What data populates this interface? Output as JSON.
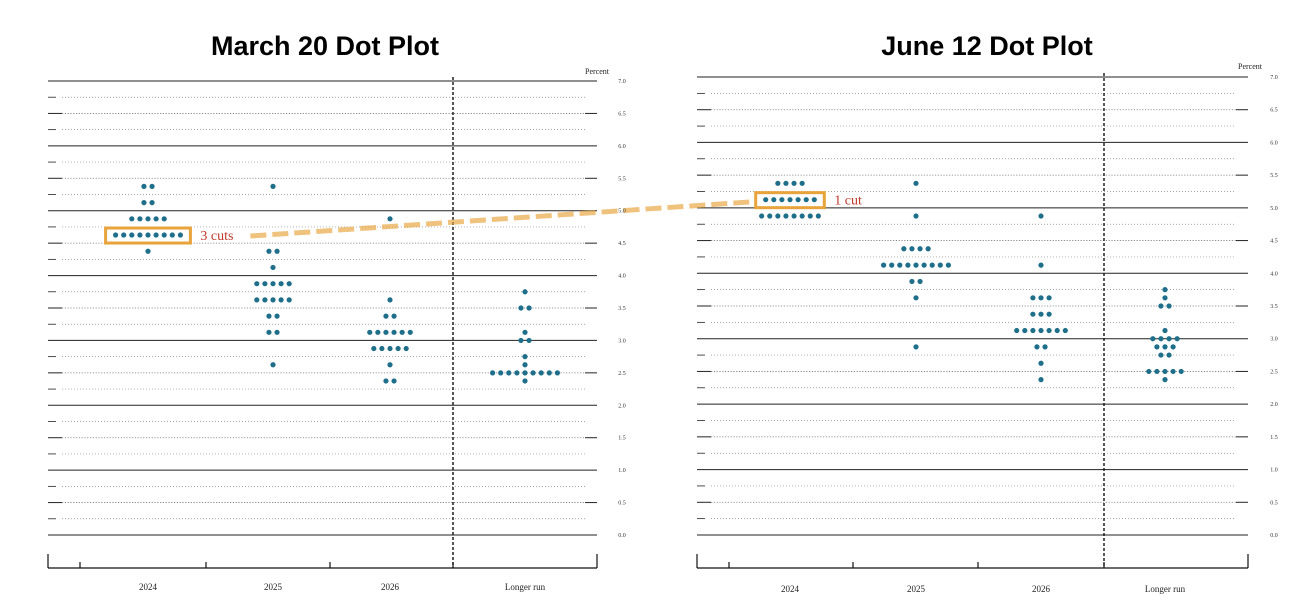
{
  "chart_data": [
    {
      "type": "scatter",
      "title": "March 20 Dot Plot",
      "ylabel": "Percent",
      "ylim": [
        0,
        7
      ],
      "y_ticks": [
        "0.0",
        "0.5",
        "1.0",
        "1.5",
        "2.0",
        "2.5",
        "3.0",
        "3.5",
        "4.0",
        "4.5",
        "5.0",
        "5.5",
        "6.0",
        "6.5",
        "7.0"
      ],
      "categories": [
        "2024",
        "2025",
        "2026",
        "Longer run"
      ],
      "grid": "solid at whole numbers, dotted at half-point steps",
      "dot_color": "#1f6f8b",
      "dots": {
        "2024": [
          {
            "y": 5.375,
            "n": 2
          },
          {
            "y": 5.125,
            "n": 2
          },
          {
            "y": 4.875,
            "n": 5
          },
          {
            "y": 4.625,
            "n": 9
          },
          {
            "y": 4.375,
            "n": 1
          }
        ],
        "2025": [
          {
            "y": 5.375,
            "n": 1
          },
          {
            "y": 4.375,
            "n": 2
          },
          {
            "y": 4.125,
            "n": 1
          },
          {
            "y": 3.875,
            "n": 5
          },
          {
            "y": 3.625,
            "n": 5
          },
          {
            "y": 3.375,
            "n": 2
          },
          {
            "y": 3.125,
            "n": 2
          },
          {
            "y": 2.625,
            "n": 1
          }
        ],
        "2026": [
          {
            "y": 4.875,
            "n": 1
          },
          {
            "y": 3.625,
            "n": 1
          },
          {
            "y": 3.375,
            "n": 2
          },
          {
            "y": 3.125,
            "n": 6
          },
          {
            "y": 2.875,
            "n": 5
          },
          {
            "y": 2.625,
            "n": 1
          },
          {
            "y": 2.375,
            "n": 2
          }
        ],
        "Longer run": [
          {
            "y": 3.75,
            "n": 1
          },
          {
            "y": 3.5,
            "n": 2
          },
          {
            "y": 3.125,
            "n": 1
          },
          {
            "y": 3.0,
            "n": 2
          },
          {
            "y": 2.75,
            "n": 1
          },
          {
            "y": 2.625,
            "n": 1
          },
          {
            "y": 2.5,
            "n": 9
          },
          {
            "y": 2.375,
            "n": 1
          }
        ]
      },
      "highlight": {
        "category": "2024",
        "y": 4.625,
        "label": "3 cuts",
        "color": "#e8a33a"
      }
    },
    {
      "type": "scatter",
      "title": "June 12 Dot Plot",
      "ylabel": "Percent",
      "ylim": [
        0,
        7
      ],
      "y_ticks": [
        "0.0",
        "0.5",
        "1.0",
        "1.5",
        "2.0",
        "2.5",
        "3.0",
        "3.5",
        "4.0",
        "4.5",
        "5.0",
        "5.5",
        "6.0",
        "6.5",
        "7.0"
      ],
      "categories": [
        "2024",
        "2025",
        "2026",
        "Longer run"
      ],
      "grid": "solid at whole numbers, dotted at half-point steps",
      "dot_color": "#1f6f8b",
      "dots": {
        "2024": [
          {
            "y": 5.375,
            "n": 4
          },
          {
            "y": 5.125,
            "n": 7
          },
          {
            "y": 4.875,
            "n": 8
          }
        ],
        "2025": [
          {
            "y": 5.375,
            "n": 1
          },
          {
            "y": 4.875,
            "n": 1
          },
          {
            "y": 4.375,
            "n": 4
          },
          {
            "y": 4.125,
            "n": 9
          },
          {
            "y": 3.875,
            "n": 2
          },
          {
            "y": 3.625,
            "n": 1
          },
          {
            "y": 2.875,
            "n": 1
          }
        ],
        "2026": [
          {
            "y": 4.875,
            "n": 1
          },
          {
            "y": 4.125,
            "n": 1
          },
          {
            "y": 3.625,
            "n": 3
          },
          {
            "y": 3.375,
            "n": 3
          },
          {
            "y": 3.125,
            "n": 7
          },
          {
            "y": 2.875,
            "n": 2
          },
          {
            "y": 2.625,
            "n": 1
          },
          {
            "y": 2.375,
            "n": 1
          }
        ],
        "Longer run": [
          {
            "y": 3.75,
            "n": 1
          },
          {
            "y": 3.625,
            "n": 1
          },
          {
            "y": 3.5,
            "n": 2
          },
          {
            "y": 3.125,
            "n": 1
          },
          {
            "y": 3.0,
            "n": 4
          },
          {
            "y": 2.875,
            "n": 3
          },
          {
            "y": 2.75,
            "n": 2
          },
          {
            "y": 2.5,
            "n": 5
          },
          {
            "y": 2.375,
            "n": 1
          }
        ]
      },
      "highlight": {
        "category": "2024",
        "y": 5.125,
        "label": "1 cut",
        "color": "#e8a33a"
      }
    }
  ]
}
